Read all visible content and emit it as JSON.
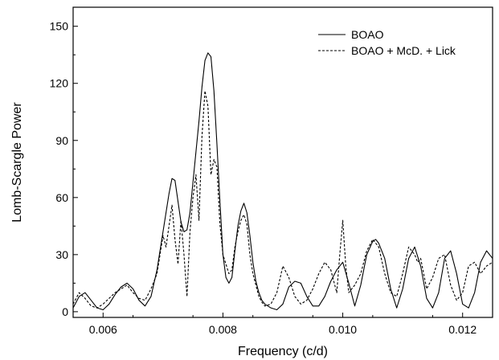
{
  "chart_data": {
    "type": "line",
    "title": "",
    "xlabel": "Frequency (c/d)",
    "ylabel": "Lomb-Scargle Power",
    "xlim": [
      0.0055,
      0.0125
    ],
    "ylim": [
      -3,
      160
    ],
    "x_ticks": [
      0.006,
      0.008,
      0.01,
      0.012
    ],
    "x_tick_labels": [
      "0.006",
      "0.008",
      "0.010",
      "0.012"
    ],
    "y_ticks": [
      0,
      30,
      60,
      90,
      120,
      150
    ],
    "y_tick_labels": [
      "0",
      "30",
      "60",
      "90",
      "120",
      "150"
    ],
    "grid": false,
    "legend_position": "top-right",
    "series": [
      {
        "name": "BOAO",
        "line_style": "solid",
        "color": "#000000",
        "x": [
          0.0055,
          0.0056,
          0.0057,
          0.0058,
          0.0059,
          0.006,
          0.0061,
          0.0062,
          0.0063,
          0.0064,
          0.0065,
          0.0066,
          0.0067,
          0.0068,
          0.0069,
          0.007,
          0.0071,
          0.00715,
          0.0072,
          0.00725,
          0.0073,
          0.00735,
          0.0074,
          0.00745,
          0.0075,
          0.00755,
          0.0076,
          0.00765,
          0.0077,
          0.00775,
          0.0078,
          0.00785,
          0.0079,
          0.00795,
          0.008,
          0.00805,
          0.0081,
          0.00815,
          0.0082,
          0.00825,
          0.0083,
          0.00835,
          0.0084,
          0.00845,
          0.0085,
          0.00855,
          0.0086,
          0.00865,
          0.0087,
          0.0088,
          0.0089,
          0.009,
          0.0091,
          0.0092,
          0.0093,
          0.0094,
          0.0095,
          0.0096,
          0.0097,
          0.0098,
          0.0099,
          0.01,
          0.0101,
          0.0102,
          0.0103,
          0.0104,
          0.0105,
          0.01055,
          0.0106,
          0.0107,
          0.0108,
          0.0109,
          0.011,
          0.0111,
          0.0112,
          0.0113,
          0.0114,
          0.0115,
          0.0116,
          0.0117,
          0.0118,
          0.0119,
          0.012,
          0.0121,
          0.0122,
          0.0123,
          0.0124,
          0.0125
        ],
        "y": [
          2,
          8,
          10,
          6,
          2,
          1,
          4,
          9,
          13,
          15,
          12,
          6,
          3,
          8,
          22,
          42,
          62,
          70,
          69,
          58,
          47,
          42,
          43,
          52,
          68,
          84,
          100,
          118,
          132,
          136,
          134,
          116,
          88,
          58,
          30,
          18,
          15,
          18,
          32,
          45,
          53,
          57,
          52,
          40,
          26,
          16,
          10,
          6,
          4,
          2,
          1,
          4,
          13,
          16,
          15,
          8,
          3,
          3,
          8,
          16,
          22,
          26,
          15,
          3,
          14,
          30,
          37,
          38,
          36,
          28,
          12,
          2,
          12,
          28,
          34,
          24,
          7,
          2,
          10,
          28,
          32,
          20,
          4,
          2,
          10,
          26,
          32,
          28
        ]
      },
      {
        "name": "BOAO + McD. + Lick",
        "line_style": "dashed",
        "color": "#000000",
        "x": [
          0.0055,
          0.0056,
          0.0057,
          0.0058,
          0.0059,
          0.006,
          0.0061,
          0.0062,
          0.0063,
          0.0064,
          0.0065,
          0.0066,
          0.0067,
          0.0068,
          0.0069,
          0.007,
          0.00705,
          0.0071,
          0.00715,
          0.0072,
          0.00725,
          0.0073,
          0.00735,
          0.0074,
          0.00745,
          0.0075,
          0.00755,
          0.0076,
          0.00765,
          0.0077,
          0.00775,
          0.0078,
          0.00785,
          0.0079,
          0.00795,
          0.008,
          0.00805,
          0.0081,
          0.00815,
          0.0082,
          0.00825,
          0.0083,
          0.00835,
          0.0084,
          0.00845,
          0.0085,
          0.00855,
          0.0086,
          0.00865,
          0.0087,
          0.0088,
          0.0089,
          0.009,
          0.0091,
          0.0092,
          0.0093,
          0.0094,
          0.0095,
          0.0096,
          0.0097,
          0.0098,
          0.0099,
          0.00995,
          0.01,
          0.01005,
          0.0101,
          0.0102,
          0.0103,
          0.0104,
          0.0105,
          0.0106,
          0.0107,
          0.0108,
          0.0109,
          0.011,
          0.0111,
          0.0112,
          0.01125,
          0.0113,
          0.0114,
          0.0115,
          0.0116,
          0.0117,
          0.0118,
          0.0119,
          0.012,
          0.0121,
          0.0122,
          0.0123,
          0.0124,
          0.0125
        ],
        "y": [
          4,
          10,
          7,
          3,
          2,
          4,
          7,
          10,
          12,
          14,
          10,
          7,
          6,
          12,
          20,
          40,
          34,
          45,
          56,
          38,
          25,
          48,
          30,
          8,
          42,
          60,
          72,
          48,
          92,
          116,
          108,
          72,
          80,
          76,
          46,
          30,
          25,
          20,
          22,
          34,
          42,
          48,
          51,
          46,
          30,
          20,
          14,
          8,
          5,
          3,
          4,
          10,
          24,
          18,
          8,
          4,
          6,
          12,
          20,
          26,
          22,
          10,
          30,
          48,
          24,
          10,
          14,
          20,
          32,
          38,
          34,
          20,
          10,
          8,
          20,
          34,
          30,
          26,
          28,
          12,
          18,
          28,
          30,
          14,
          6,
          10,
          24,
          26,
          20,
          24,
          26
        ]
      }
    ]
  }
}
